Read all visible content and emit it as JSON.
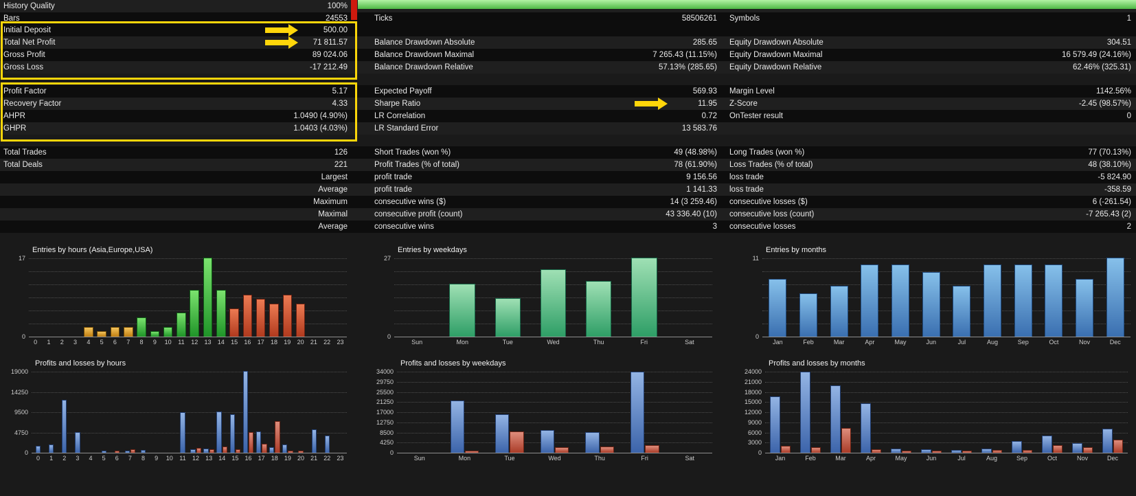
{
  "app": {
    "name": "Strategy Tester Backtest Report"
  },
  "palette": {
    "yellow": "#ffd60a",
    "quality_red": "#ce1a0e",
    "quality_green_top": "#b2f2a4",
    "quality_green_bottom": "#4eb845",
    "asia": {
      "top": "#f4c45c",
      "bottom": "#c07f12",
      "border": "#6e4a07"
    },
    "europe": {
      "top": "#7be26e",
      "bottom": "#1f9428",
      "border": "#0f5c16"
    },
    "usa": {
      "top": "#ec7a52",
      "bottom": "#b03a1e",
      "border": "#6b2212"
    },
    "weekday": {
      "top": "#9fe0b4",
      "bottom": "#2e9e66",
      "border": "#176647"
    },
    "month": {
      "top": "#86c0ea",
      "bottom": "#3a6fb0",
      "border": "#1f4a7e"
    },
    "profit": {
      "top": "#93b4e4",
      "bottom": "#3c64aa",
      "border": "#223f73"
    },
    "loss": {
      "top": "#de8d7c",
      "bottom": "#aa3c28",
      "border": "#6e2415"
    }
  },
  "stats": {
    "groups": [
      {
        "rows": [
          {
            "l1": "History Quality",
            "v1": "100%",
            "l2": "",
            "v2": "",
            "l3": "",
            "v3": ""
          },
          {
            "l1": "Bars",
            "v1": "24553",
            "l2": "Ticks",
            "v2": "58506261",
            "l3": "Symbols",
            "v3": "1"
          }
        ]
      },
      {
        "rows": [
          {
            "l1": "Initial Deposit",
            "v1": "500.00",
            "l2": "",
            "v2": "",
            "l3": "",
            "v3": "",
            "a1": true
          },
          {
            "l1": "Total Net Profit",
            "v1": "71 811.57",
            "l2": "Balance Drawdown Absolute",
            "v2": "285.65",
            "l3": "Equity Drawdown Absolute",
            "v3": "304.51",
            "a1": true
          },
          {
            "l1": "Gross Profit",
            "v1": "89 024.06",
            "l2": "Balance Drawdown Maximal",
            "v2": "7 265.43 (11.15%)",
            "l3": "Equity Drawdown Maximal",
            "v3": "16 579.49 (24.16%)"
          },
          {
            "l1": "Gross Loss",
            "v1": "-17 212.49",
            "l2": "Balance Drawdown Relative",
            "v2": "57.13% (285.65)",
            "l3": "Equity Drawdown Relative",
            "v3": "62.46% (325.31)"
          }
        ]
      },
      {
        "rows": [
          {
            "l1": "Profit Factor",
            "v1": "5.17",
            "l2": "Expected Payoff",
            "v2": "569.93",
            "l3": "Margin Level",
            "v3": "1142.56%"
          },
          {
            "l1": "Recovery Factor",
            "v1": "4.33",
            "l2": "Sharpe Ratio",
            "v2": "11.95",
            "l3": "Z-Score",
            "v3": "-2.45 (98.57%)",
            "a2": true
          },
          {
            "l1": "AHPR",
            "v1": "1.0490 (4.90%)",
            "l2": "LR Correlation",
            "v2": "0.72",
            "l3": "OnTester result",
            "v3": "0"
          },
          {
            "l1": "GHPR",
            "v1": "1.0403 (4.03%)",
            "l2": "LR Standard Error",
            "v2": "13 583.76",
            "l3": "",
            "v3": ""
          }
        ]
      },
      {
        "rows": [
          {
            "l1": "Total Trades",
            "v1": "126",
            "l2": "Short Trades (won %)",
            "v2": "49 (48.98%)",
            "l3": "Long Trades (won %)",
            "v3": "77 (70.13%)"
          },
          {
            "l1": "Total Deals",
            "v1": "221",
            "l2": "Profit Trades (% of total)",
            "v2": "78 (61.90%)",
            "l3": "Loss Trades (% of total)",
            "v3": "48 (38.10%)"
          },
          {
            "l1": "",
            "v1": "Largest",
            "l2": "profit trade",
            "v2": "9 156.56",
            "l3": "loss trade",
            "v3": "-5 824.90"
          },
          {
            "l1": "",
            "v1": "Average",
            "l2": "profit trade",
            "v2": "1 141.33",
            "l3": "loss trade",
            "v3": "-358.59"
          },
          {
            "l1": "",
            "v1": "Maximum",
            "l2": "consecutive wins ($)",
            "v2": "14 (3 259.46)",
            "l3": "consecutive losses ($)",
            "v3": "6 (-261.54)"
          },
          {
            "l1": "",
            "v1": "Maximal",
            "l2": "consecutive profit (count)",
            "v2": "43 336.40 (10)",
            "l3": "consecutive loss (count)",
            "v3": "-7 265.43 (2)"
          },
          {
            "l1": "",
            "v1": "Average",
            "l2": "consecutive wins",
            "v2": "3",
            "l3": "consecutive losses",
            "v3": "2"
          }
        ]
      }
    ]
  },
  "chart_data": [
    {
      "type": "bar",
      "title": "Entries by hours (Asia,Europe,USA)",
      "categories": [
        "0",
        "1",
        "2",
        "3",
        "4",
        "5",
        "6",
        "7",
        "8",
        "9",
        "10",
        "11",
        "12",
        "13",
        "14",
        "15",
        "16",
        "17",
        "18",
        "19",
        "20",
        "21",
        "22",
        "23"
      ],
      "values": [
        0,
        0,
        0,
        0,
        2,
        1,
        2,
        2,
        4,
        1,
        2,
        5,
        10,
        17,
        10,
        6,
        9,
        8,
        7,
        9,
        7,
        0,
        0,
        0
      ],
      "bar_colors": [
        "asia",
        "asia",
        "asia",
        "asia",
        "asia",
        "asia",
        "asia",
        "asia",
        "europe",
        "europe",
        "europe",
        "europe",
        "europe",
        "europe",
        "europe",
        "usa",
        "usa",
        "usa",
        "usa",
        "usa",
        "usa",
        "usa",
        "usa",
        "usa"
      ],
      "ylim": [
        0,
        17
      ],
      "yticks": [
        0,
        17
      ],
      "grid": "dotted"
    },
    {
      "type": "bar",
      "title": "Entries by weekdays",
      "categories": [
        "Sun",
        "Mon",
        "Tue",
        "Wed",
        "Thu",
        "Fri",
        "Sat"
      ],
      "values": [
        0,
        18,
        13,
        23,
        19,
        27,
        0
      ],
      "color": "weekday",
      "ylim": [
        0,
        27
      ],
      "yticks": [
        0,
        27
      ],
      "grid": "dotted"
    },
    {
      "type": "bar",
      "title": "Entries by months",
      "categories": [
        "Jan",
        "Feb",
        "Mar",
        "Apr",
        "May",
        "Jun",
        "Jul",
        "Aug",
        "Sep",
        "Oct",
        "Nov",
        "Dec"
      ],
      "values": [
        8,
        6,
        7,
        10,
        10,
        9,
        7,
        10,
        10,
        10,
        8,
        11
      ],
      "color": "month",
      "ylim": [
        0,
        11
      ],
      "yticks": [
        0,
        11
      ],
      "grid": "dotted"
    },
    {
      "type": "bar",
      "title": "Profits and losses by hours",
      "categories": [
        "0",
        "1",
        "2",
        "3",
        "4",
        "5",
        "6",
        "7",
        "8",
        "9",
        "10",
        "11",
        "12",
        "13",
        "14",
        "15",
        "16",
        "17",
        "18",
        "19",
        "20",
        "21",
        "22",
        "23"
      ],
      "series": [
        {
          "name": "profit",
          "color": "profit",
          "values": [
            1500,
            1800,
            12200,
            4700,
            0,
            300,
            0,
            400,
            500,
            0,
            0,
            9300,
            600,
            800,
            9500,
            8800,
            19000,
            4800,
            1200,
            1700,
            0,
            5300,
            3800,
            0
          ]
        },
        {
          "name": "loss",
          "color": "loss",
          "values": [
            0,
            0,
            0,
            0,
            0,
            0,
            200,
            600,
            0,
            0,
            0,
            0,
            900,
            600,
            1300,
            700,
            4600,
            1900,
            7300,
            300,
            400,
            0,
            0,
            0
          ]
        }
      ],
      "ylim": [
        0,
        19000
      ],
      "yticks": [
        0,
        4750,
        9500,
        14250,
        19000
      ],
      "grid": "dotted"
    },
    {
      "type": "bar",
      "title": "Profits and losses by weekdays",
      "categories": [
        "Sun",
        "Mon",
        "Tue",
        "Wed",
        "Thu",
        "Fri",
        "Sat"
      ],
      "series": [
        {
          "name": "profit",
          "color": "profit",
          "values": [
            0,
            21700,
            15800,
            9300,
            8400,
            33600,
            0
          ]
        },
        {
          "name": "loss",
          "color": "loss",
          "values": [
            0,
            700,
            8600,
            2100,
            2400,
            2800,
            0
          ]
        }
      ],
      "ylim": [
        0,
        34000
      ],
      "yticks": [
        0,
        4250,
        8500,
        12750,
        17000,
        21250,
        25500,
        29750,
        34000
      ],
      "grid": "dotted"
    },
    {
      "type": "bar",
      "title": "Profits and losses by months",
      "categories": [
        "Jan",
        "Feb",
        "Mar",
        "Apr",
        "May",
        "Jun",
        "Jul",
        "Aug",
        "Sep",
        "Oct",
        "Nov",
        "Dec"
      ],
      "series": [
        {
          "name": "profit",
          "color": "profit",
          "values": [
            16500,
            23800,
            19800,
            14500,
            1100,
            900,
            700,
            1000,
            3300,
            4900,
            2700,
            7000
          ]
        },
        {
          "name": "loss",
          "color": "loss",
          "values": [
            1800,
            1400,
            7200,
            800,
            400,
            300,
            400,
            700,
            600,
            2000,
            1400,
            3600
          ]
        }
      ],
      "ylim": [
        0,
        24000
      ],
      "yticks": [
        0,
        3000,
        6000,
        9000,
        12000,
        15000,
        18000,
        21000,
        24000
      ],
      "grid": "dotted"
    }
  ]
}
